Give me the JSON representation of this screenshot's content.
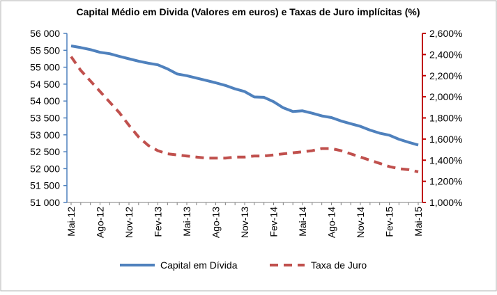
{
  "chart_data": {
    "type": "line",
    "title": "Capital Médio em Divida (Valores em euros) e Taxas de Juro implícitas (%)",
    "categories": [
      "Mai-12",
      "Jun-12",
      "Jul-12",
      "Ago-12",
      "Set-12",
      "Out-12",
      "Nov-12",
      "Dez-12",
      "Jan-13",
      "Fev-13",
      "Mar-13",
      "Abr-13",
      "Mai-13",
      "Jun-13",
      "Jul-13",
      "Ago-13",
      "Set-13",
      "Out-13",
      "Nov-13",
      "Dez-13",
      "Jan-14",
      "Fev-14",
      "Mar-14",
      "Abr-14",
      "Mai-14",
      "Jun-14",
      "Jul-14",
      "Ago-14",
      "Set-14",
      "Out-14",
      "Nov-14",
      "Dez-14",
      "Jan-15",
      "Fev-15",
      "Mar-15",
      "Abr-15",
      "Mai-15"
    ],
    "shown_tick_labels": [
      "Mai-12",
      "Ago-12",
      "Nov-12",
      "Fev-13",
      "Mai-13",
      "Ago-13",
      "Nov-13",
      "Fev-14",
      "Mai-14",
      "Ago-14",
      "Nov-14",
      "Fev-15",
      "Mai-15"
    ],
    "series": [
      {
        "name": "Capital em Dívida",
        "axis": "left",
        "style": "solid",
        "color": "#4f81bd",
        "values": [
          55630,
          55580,
          55520,
          55440,
          55400,
          55320,
          55250,
          55180,
          55120,
          55070,
          54950,
          54800,
          54750,
          54680,
          54610,
          54540,
          54460,
          54360,
          54280,
          54120,
          54110,
          53980,
          53800,
          53690,
          53710,
          53640,
          53560,
          53510,
          53410,
          53330,
          53250,
          53140,
          53050,
          52990,
          52870,
          52780,
          52700
        ]
      },
      {
        "name": "Taxa de Juro",
        "axis": "right",
        "style": "dashed",
        "color": "#c0504d",
        "values": [
          2.38,
          2.25,
          2.15,
          2.05,
          1.95,
          1.85,
          1.73,
          1.62,
          1.54,
          1.49,
          1.46,
          1.45,
          1.44,
          1.43,
          1.42,
          1.42,
          1.42,
          1.43,
          1.43,
          1.44,
          1.44,
          1.45,
          1.46,
          1.47,
          1.48,
          1.49,
          1.51,
          1.51,
          1.49,
          1.46,
          1.43,
          1.4,
          1.37,
          1.34,
          1.32,
          1.31,
          1.29
        ]
      }
    ],
    "y_left": {
      "min": 51000,
      "max": 56000,
      "step": 500,
      "tick_labels": [
        "51 000",
        "51 500",
        "52 000",
        "52 500",
        "53 000",
        "53 500",
        "54 000",
        "54 500",
        "55 000",
        "55 500",
        "56 000"
      ]
    },
    "y_right": {
      "min": 1.0,
      "max": 2.6,
      "step": 0.2,
      "tick_labels": [
        "1,000%",
        "1,200%",
        "1,400%",
        "1,600%",
        "1,800%",
        "2,000%",
        "2,200%",
        "2,400%",
        "2,600%"
      ]
    },
    "grid": false,
    "legend_position": "bottom"
  },
  "colors": {
    "left_axis": "#4f81bd",
    "right_axis": "#c00000",
    "frame": "#b0b0b0"
  }
}
